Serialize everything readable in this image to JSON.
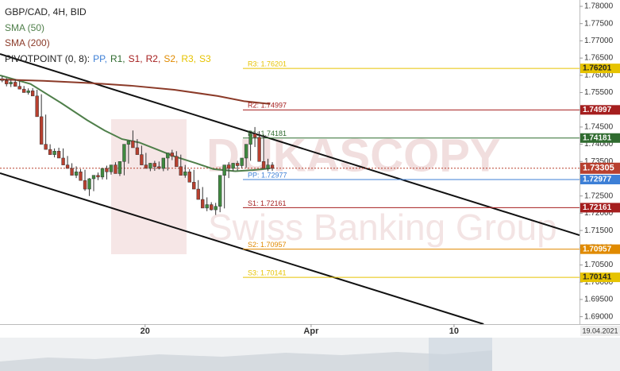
{
  "chart_data": {
    "type": "candlestick",
    "title": "GBP/CAD, 4H, BID",
    "date_label": "19.04.2021",
    "watermark": {
      "title": "DUKASCOPY",
      "subtitle": "Swiss Banking Group"
    },
    "xlim": [
      0,
      133
    ],
    "ylim": [
      1.68784,
      1.78184
    ],
    "xticks": [
      {
        "value": 33.3,
        "label": "20"
      },
      {
        "value": 71.4,
        "label": "Apr"
      },
      {
        "value": 104.2,
        "label": "10"
      }
    ],
    "yticks": [
      {
        "value": 1.78,
        "label": "1.78000"
      },
      {
        "value": 1.775,
        "label": "1.77500"
      },
      {
        "value": 1.77,
        "label": "1.77000"
      },
      {
        "value": 1.765,
        "label": "1.76500"
      },
      {
        "value": 1.76,
        "label": "1.76000"
      },
      {
        "value": 1.755,
        "label": "1.75500"
      },
      {
        "value": 1.75,
        "label": "1.75000"
      },
      {
        "value": 1.745,
        "label": "1.74500"
      },
      {
        "value": 1.74,
        "label": "1.74000"
      },
      {
        "value": 1.735,
        "label": "1.73500"
      },
      {
        "value": 1.73,
        "label": "1.73000"
      },
      {
        "value": 1.725,
        "label": "1.72500"
      },
      {
        "value": 1.72,
        "label": "1.72000"
      },
      {
        "value": 1.715,
        "label": "1.71500"
      },
      {
        "value": 1.71,
        "label": "1.71000"
      },
      {
        "value": 1.705,
        "label": "1.70500"
      },
      {
        "value": 1.7,
        "label": "1.70000"
      },
      {
        "value": 1.695,
        "label": "1.69500"
      },
      {
        "value": 1.69,
        "label": "1.69000"
      }
    ],
    "up_color": "#3f8a3f",
    "down_color": "#b8402f",
    "candles": {
      "open": [
        1.759,
        1.7585,
        1.7575,
        1.758,
        1.7568,
        1.756,
        1.755,
        1.7555,
        1.754,
        1.748,
        1.74,
        1.7385,
        1.737,
        1.738,
        1.736,
        1.734,
        1.733,
        1.731,
        1.732,
        1.7295,
        1.727,
        1.73,
        1.731,
        1.7305,
        1.733,
        1.732,
        1.734,
        1.7315,
        1.735,
        1.74,
        1.741,
        1.739,
        1.737,
        1.734,
        1.733,
        1.7345,
        1.7335,
        1.733,
        1.736,
        1.7375,
        1.7365,
        1.7335,
        1.731,
        1.732,
        1.729,
        1.727,
        1.724,
        1.7215,
        1.7225,
        1.721,
        1.722,
        1.731,
        1.734,
        1.733,
        1.7345,
        1.7338,
        1.736,
        1.74,
        1.743,
        1.742,
        1.735,
        1.733,
        1.734
      ],
      "high": [
        1.7598,
        1.7592,
        1.7586,
        1.7588,
        1.7583,
        1.7569,
        1.7562,
        1.7563,
        1.7558,
        1.7545,
        1.7486,
        1.74,
        1.7388,
        1.739,
        1.7388,
        1.7366,
        1.7345,
        1.7336,
        1.7328,
        1.7326,
        1.7302,
        1.7308,
        1.7318,
        1.7315,
        1.7338,
        1.7336,
        1.7348,
        1.7345,
        1.7358,
        1.7408,
        1.744,
        1.7415,
        1.7396,
        1.7375,
        1.7346,
        1.7352,
        1.735,
        1.734,
        1.7368,
        1.7384,
        1.738,
        1.737,
        1.734,
        1.7328,
        1.7326,
        1.7296,
        1.7276,
        1.7246,
        1.7232,
        1.723,
        1.7228,
        1.7318,
        1.7348,
        1.7346,
        1.7352,
        1.7352,
        1.7368,
        1.7408,
        1.745,
        1.7438,
        1.7428,
        1.7358,
        1.7348
      ],
      "low": [
        1.758,
        1.7568,
        1.7566,
        1.7572,
        1.756,
        1.7552,
        1.7544,
        1.7546,
        1.7534,
        1.7474,
        1.7394,
        1.7378,
        1.7362,
        1.7365,
        1.7352,
        1.7334,
        1.7322,
        1.7302,
        1.7304,
        1.7265,
        1.725,
        1.7264,
        1.7296,
        1.7298,
        1.7298,
        1.7312,
        1.7316,
        1.7308,
        1.731,
        1.7344,
        1.7395,
        1.7384,
        1.7364,
        1.7333,
        1.7322,
        1.7323,
        1.7327,
        1.7322,
        1.7324,
        1.7354,
        1.7358,
        1.7328,
        1.7303,
        1.7304,
        1.7283,
        1.7262,
        1.7232,
        1.7206,
        1.7208,
        1.7195,
        1.7203,
        1.7214,
        1.7302,
        1.7322,
        1.7324,
        1.7331,
        1.7332,
        1.7352,
        1.7392,
        1.7412,
        1.7342,
        1.7322,
        1.7323
      ],
      "close": [
        1.7585,
        1.7575,
        1.758,
        1.7568,
        1.756,
        1.755,
        1.7555,
        1.754,
        1.748,
        1.74,
        1.7385,
        1.737,
        1.738,
        1.736,
        1.734,
        1.733,
        1.731,
        1.732,
        1.7295,
        1.727,
        1.73,
        1.731,
        1.7305,
        1.733,
        1.732,
        1.734,
        1.7315,
        1.735,
        1.74,
        1.741,
        1.739,
        1.737,
        1.734,
        1.733,
        1.7345,
        1.7335,
        1.733,
        1.736,
        1.7375,
        1.7365,
        1.7335,
        1.731,
        1.732,
        1.729,
        1.727,
        1.724,
        1.7215,
        1.7225,
        1.721,
        1.722,
        1.731,
        1.734,
        1.733,
        1.7345,
        1.7338,
        1.736,
        1.74,
        1.743,
        1.742,
        1.735,
        1.733,
        1.734,
        1.733
      ]
    },
    "series": [
      {
        "name": "SMA (50)",
        "color": "#4f7f4a",
        "x": [
          0,
          7,
          14,
          20,
          24,
          28,
          32,
          36,
          40,
          45,
          49,
          54,
          58,
          62
        ],
        "values": [
          1.76,
          1.7575,
          1.752,
          1.747,
          1.744,
          1.7415,
          1.7405,
          1.7385,
          1.7365,
          1.7345,
          1.7328,
          1.7322,
          1.7325,
          1.733
        ]
      },
      {
        "name": "SMA (200)",
        "color": "#8b3a28",
        "x": [
          0,
          10,
          20,
          30,
          40,
          50,
          56,
          62
        ],
        "values": [
          1.7588,
          1.7584,
          1.7578,
          1.757,
          1.7558,
          1.754,
          1.7525,
          1.7517
        ]
      }
    ],
    "channel": {
      "color": "#111111",
      "lines": [
        {
          "x": [
            0,
            133
          ],
          "values": [
            1.76618,
            1.71364
          ]
        },
        {
          "x": [
            0,
            111
          ],
          "values": [
            1.73162,
            1.68784
          ]
        }
      ]
    },
    "current_price": {
      "value": 1.73305,
      "color": "#b8402f"
    },
    "pivot_legend": {
      "prefix": "PIVOTPOINT (0, 8):",
      "items": [
        {
          "label": "PP,",
          "color": "#3d7fd6"
        },
        {
          "label": "R1,",
          "color": "#2f6b2f"
        },
        {
          "label": "S1,",
          "color": "#a51e1e"
        },
        {
          "label": "R2,",
          "color": "#a51e1e"
        },
        {
          "label": "S2,",
          "color": "#e08a00"
        },
        {
          "label": "R3,",
          "color": "#e6c300"
        },
        {
          "label": "S3",
          "color": "#e6c300"
        }
      ]
    },
    "levels": [
      {
        "label": "R3: 1.76201",
        "value": 1.76201,
        "color": "#e6c300"
      },
      {
        "label": "R2: 1.74997",
        "value": 1.74997,
        "color": "#a51e1e"
      },
      {
        "label": "R1: 1.74181",
        "value": 1.74181,
        "color": "#2f6b2f"
      },
      {
        "label": "PP: 1.72977",
        "value": 1.72977,
        "color": "#3d7fd6"
      },
      {
        "label": "S1: 1.72161",
        "value": 1.72161,
        "color": "#a51e1e"
      },
      {
        "label": "S2: 1.70957",
        "value": 1.70957,
        "color": "#e08a00"
      },
      {
        "label": "S3: 1.70141",
        "value": 1.70141,
        "color": "#e6c300"
      }
    ]
  }
}
